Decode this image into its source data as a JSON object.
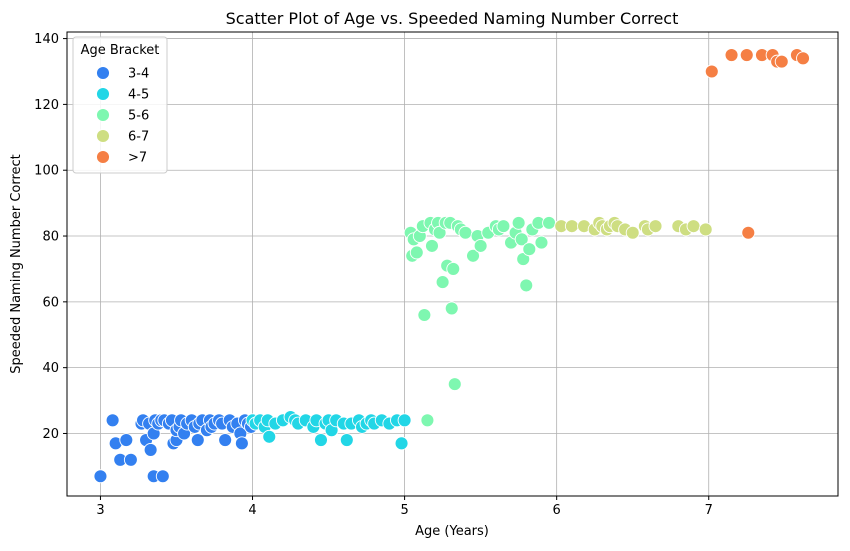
{
  "chart_data": {
    "type": "scatter",
    "title": "Scatter Plot of Age vs. Speeded Naming Number Correct",
    "xlabel": "Age (Years)",
    "ylabel": "Speeded Naming Number Correct",
    "xlim": [
      2.78,
      7.85
    ],
    "ylim": [
      1,
      142
    ],
    "xticks": [
      3,
      4,
      5,
      6,
      7
    ],
    "yticks": [
      20,
      40,
      60,
      80,
      100,
      120,
      140
    ],
    "grid": true,
    "legend": {
      "title": "Age Bracket",
      "position": "top-left"
    },
    "series": [
      {
        "name": "3-4",
        "color": "#3380f0",
        "points": [
          [
            3.0,
            7
          ],
          [
            3.08,
            24
          ],
          [
            3.1,
            17
          ],
          [
            3.13,
            12
          ],
          [
            3.17,
            18
          ],
          [
            3.2,
            12
          ],
          [
            3.27,
            23
          ],
          [
            3.28,
            24
          ],
          [
            3.3,
            18
          ],
          [
            3.32,
            23
          ],
          [
            3.33,
            15
          ],
          [
            3.35,
            20
          ],
          [
            3.35,
            7
          ],
          [
            3.36,
            24
          ],
          [
            3.38,
            23
          ],
          [
            3.4,
            24
          ],
          [
            3.41,
            7
          ],
          [
            3.42,
            24
          ],
          [
            3.45,
            23
          ],
          [
            3.47,
            24
          ],
          [
            3.48,
            17
          ],
          [
            3.5,
            18
          ],
          [
            3.5,
            21
          ],
          [
            3.52,
            22
          ],
          [
            3.53,
            24
          ],
          [
            3.55,
            20
          ],
          [
            3.57,
            23
          ],
          [
            3.6,
            24
          ],
          [
            3.62,
            22
          ],
          [
            3.64,
            18
          ],
          [
            3.65,
            23
          ],
          [
            3.67,
            24
          ],
          [
            3.7,
            21
          ],
          [
            3.72,
            24
          ],
          [
            3.73,
            22
          ],
          [
            3.75,
            23
          ],
          [
            3.78,
            24
          ],
          [
            3.8,
            23
          ],
          [
            3.82,
            18
          ],
          [
            3.85,
            24
          ],
          [
            3.87,
            22
          ],
          [
            3.9,
            23
          ],
          [
            3.92,
            20
          ],
          [
            3.93,
            17
          ],
          [
            3.95,
            24
          ],
          [
            3.97,
            23
          ],
          [
            3.99,
            22
          ]
        ]
      },
      {
        "name": "4-5",
        "color": "#22d6e6",
        "points": [
          [
            4.0,
            24
          ],
          [
            4.02,
            23
          ],
          [
            4.05,
            24
          ],
          [
            4.08,
            22
          ],
          [
            4.1,
            24
          ],
          [
            4.11,
            19
          ],
          [
            4.15,
            23
          ],
          [
            4.2,
            24
          ],
          [
            4.25,
            25
          ],
          [
            4.28,
            24
          ],
          [
            4.3,
            23
          ],
          [
            4.35,
            24
          ],
          [
            4.4,
            22
          ],
          [
            4.42,
            24
          ],
          [
            4.45,
            18
          ],
          [
            4.48,
            23
          ],
          [
            4.5,
            24
          ],
          [
            4.52,
            21
          ],
          [
            4.55,
            24
          ],
          [
            4.6,
            23
          ],
          [
            4.62,
            18
          ],
          [
            4.65,
            23
          ],
          [
            4.7,
            24
          ],
          [
            4.72,
            22
          ],
          [
            4.75,
            23
          ],
          [
            4.78,
            24
          ],
          [
            4.8,
            23
          ],
          [
            4.85,
            24
          ],
          [
            4.9,
            23
          ],
          [
            4.95,
            24
          ],
          [
            4.98,
            17
          ],
          [
            5.0,
            24
          ]
        ]
      },
      {
        "name": "5-6",
        "color": "#7ef7b0",
        "points": [
          [
            5.04,
            81
          ],
          [
            5.05,
            74
          ],
          [
            5.06,
            79
          ],
          [
            5.08,
            75
          ],
          [
            5.1,
            80
          ],
          [
            5.12,
            83
          ],
          [
            5.13,
            56
          ],
          [
            5.15,
            24
          ],
          [
            5.17,
            84
          ],
          [
            5.18,
            77
          ],
          [
            5.2,
            82
          ],
          [
            5.22,
            84
          ],
          [
            5.23,
            81
          ],
          [
            5.25,
            66
          ],
          [
            5.27,
            84
          ],
          [
            5.28,
            71
          ],
          [
            5.3,
            84
          ],
          [
            5.31,
            58
          ],
          [
            5.32,
            70
          ],
          [
            5.33,
            35
          ],
          [
            5.35,
            83
          ],
          [
            5.37,
            82
          ],
          [
            5.4,
            81
          ],
          [
            5.45,
            74
          ],
          [
            5.48,
            80
          ],
          [
            5.5,
            77
          ],
          [
            5.55,
            81
          ],
          [
            5.6,
            83
          ],
          [
            5.62,
            82
          ],
          [
            5.65,
            83
          ],
          [
            5.7,
            78
          ],
          [
            5.73,
            81
          ],
          [
            5.75,
            84
          ],
          [
            5.77,
            79
          ],
          [
            5.78,
            73
          ],
          [
            5.8,
            65
          ],
          [
            5.82,
            76
          ],
          [
            5.84,
            82
          ],
          [
            5.88,
            84
          ],
          [
            5.9,
            78
          ],
          [
            5.95,
            84
          ]
        ]
      },
      {
        "name": "6-7",
        "color": "#cede82",
        "points": [
          [
            6.03,
            83
          ],
          [
            6.1,
            83
          ],
          [
            6.18,
            83
          ],
          [
            6.25,
            82
          ],
          [
            6.28,
            84
          ],
          [
            6.3,
            83
          ],
          [
            6.33,
            82
          ],
          [
            6.35,
            83
          ],
          [
            6.38,
            84
          ],
          [
            6.4,
            83
          ],
          [
            6.45,
            82
          ],
          [
            6.5,
            81
          ],
          [
            6.58,
            83
          ],
          [
            6.6,
            82
          ],
          [
            6.65,
            83
          ],
          [
            6.8,
            83
          ],
          [
            6.85,
            82
          ],
          [
            6.9,
            83
          ],
          [
            6.98,
            82
          ]
        ]
      },
      {
        "name": ">7",
        "color": "#f57f44",
        "points": [
          [
            7.02,
            130
          ],
          [
            7.15,
            135
          ],
          [
            7.25,
            135
          ],
          [
            7.26,
            81
          ],
          [
            7.35,
            135
          ],
          [
            7.42,
            135
          ],
          [
            7.45,
            133
          ],
          [
            7.48,
            133
          ],
          [
            7.58,
            135
          ],
          [
            7.62,
            134
          ]
        ]
      }
    ]
  }
}
